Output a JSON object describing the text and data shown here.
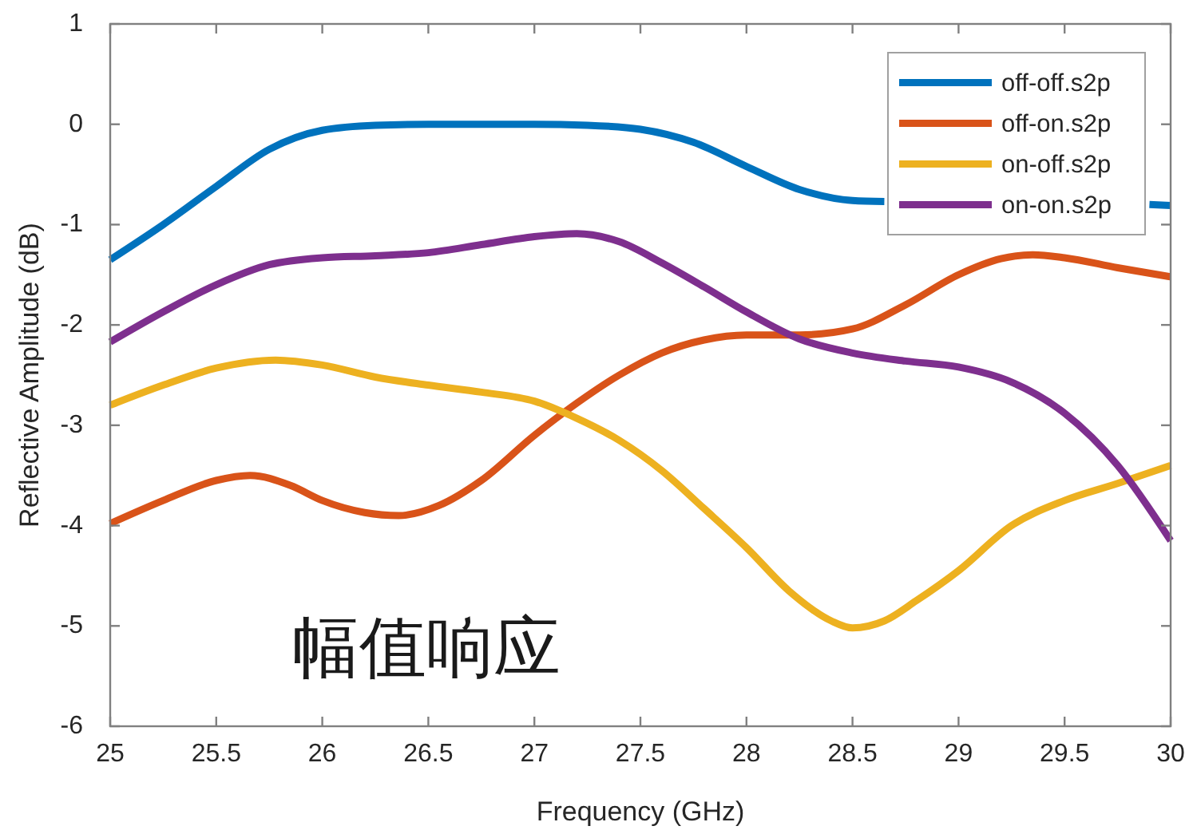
{
  "chart_data": {
    "type": "line",
    "xlabel": "Frequency (GHz)",
    "ylabel": "Reflective Amplitude (dB)",
    "xlim": [
      25,
      30
    ],
    "xticks": [
      25,
      25.5,
      26,
      26.5,
      27,
      27.5,
      28,
      28.5,
      29,
      29.5,
      30
    ],
    "ylim": [
      -6,
      1
    ],
    "yticks": [
      -6,
      -5,
      -4,
      -3,
      -2,
      -1,
      0,
      1
    ],
    "legend": "top right",
    "annotations": [
      "幅值响应"
    ],
    "series": [
      {
        "name": "off-off.s2p",
        "color": "#0072bd",
        "x": [
          25,
          25.25,
          25.5,
          25.75,
          26,
          26.25,
          26.5,
          26.75,
          27,
          27.25,
          27.5,
          27.75,
          28,
          28.25,
          28.5,
          28.65,
          29,
          29.5,
          29.9,
          30
        ],
        "values": [
          -1.35,
          -1.0,
          -0.62,
          -0.25,
          -0.06,
          -0.01,
          0.0,
          0.0,
          0.0,
          -0.01,
          -0.05,
          -0.18,
          -0.42,
          -0.65,
          -0.76,
          -0.77,
          null,
          null,
          -0.8,
          -0.81
        ]
      },
      {
        "name": "off-on.s2p",
        "color": "#d95319",
        "x": [
          25,
          25.25,
          25.5,
          25.66,
          25.85,
          26,
          26.2,
          26.36,
          26.55,
          26.75,
          27,
          27.2,
          27.4,
          27.6,
          27.8,
          28,
          28.25,
          28.5,
          28.75,
          29,
          29.2,
          29.35,
          29.5,
          29.75,
          30
        ],
        "values": [
          -3.98,
          -3.75,
          -3.55,
          -3.5,
          -3.6,
          -3.75,
          -3.87,
          -3.9,
          -3.8,
          -3.55,
          -3.1,
          -2.78,
          -2.5,
          -2.28,
          -2.15,
          -2.1,
          -2.1,
          -2.04,
          -1.8,
          -1.5,
          -1.34,
          -1.3,
          -1.33,
          -1.43,
          -1.52
        ]
      },
      {
        "name": "on-off.s2p",
        "color": "#edb120",
        "x": [
          25,
          25.25,
          25.5,
          25.78,
          26,
          26.25,
          26.5,
          26.75,
          27,
          27.2,
          27.4,
          27.6,
          27.8,
          28,
          28.2,
          28.4,
          28.5,
          28.65,
          28.8,
          29,
          29.25,
          29.5,
          29.75,
          30
        ],
        "values": [
          -2.8,
          -2.6,
          -2.43,
          -2.35,
          -2.4,
          -2.52,
          -2.6,
          -2.67,
          -2.76,
          -2.93,
          -3.15,
          -3.45,
          -3.83,
          -4.22,
          -4.65,
          -4.95,
          -5.02,
          -4.95,
          -4.75,
          -4.45,
          -4.0,
          -3.75,
          -3.58,
          -3.4
        ]
      },
      {
        "name": "on-on.s2p",
        "color": "#7e2f8e",
        "x": [
          25,
          25.25,
          25.5,
          25.75,
          26,
          26.25,
          26.5,
          26.75,
          27,
          27.2,
          27.4,
          27.6,
          27.8,
          28,
          28.25,
          28.5,
          28.75,
          29,
          29.25,
          29.5,
          29.75,
          30
        ],
        "values": [
          -2.17,
          -1.87,
          -1.6,
          -1.4,
          -1.33,
          -1.31,
          -1.28,
          -1.2,
          -1.12,
          -1.09,
          -1.17,
          -1.38,
          -1.62,
          -1.87,
          -2.14,
          -2.28,
          -2.36,
          -2.42,
          -2.57,
          -2.88,
          -3.4,
          -4.15
        ]
      }
    ]
  }
}
